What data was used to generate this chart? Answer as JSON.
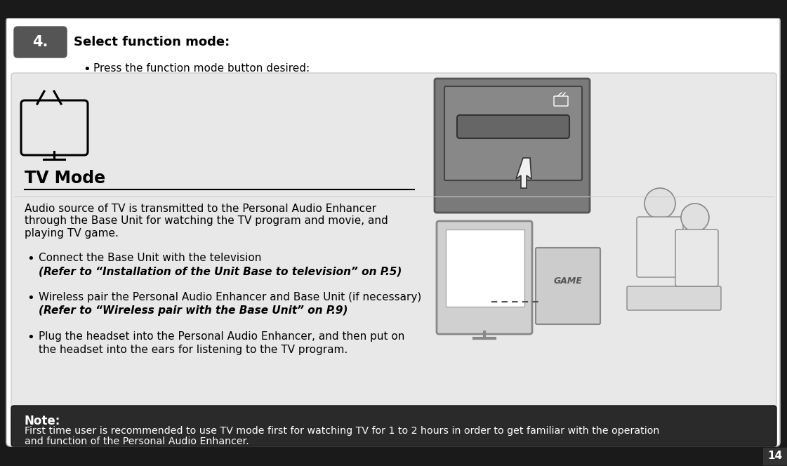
{
  "bg_outer": "#1a1a1a",
  "bg_page": "#f5f5f5",
  "bg_content_box": "#e8e8e8",
  "bg_note": "#2a2a2a",
  "step_bubble_color": "#555555",
  "step_bubble_text": "4.",
  "step_label": "Select function mode:",
  "bullet_line": "Press the function mode button desired:",
  "tv_mode_title": "TV Mode",
  "tv_mode_desc": "Audio source of TV is transmitted to the Personal Audio Enhancer\nthrough the Base Unit for watching the TV program and movie, and\nplaying TV game.",
  "bullet1_main": "Connect the Base Unit with the television",
  "bullet1_italic": "(Refer to “Installation of the Unit Base to television” on P.5)",
  "bullet2_main": "Wireless pair the Personal Audio Enhancer and Base Unit (if necessary)",
  "bullet2_italic": "(Refer to “Wireless pair with the Base Unit” on P.9)",
  "bullet3_line1": "Plug the headset into the Personal Audio Enhancer, and then put on",
  "bullet3_line2": "the headset into the ears for listening to the TV program.",
  "note_title": "Note:",
  "note_line1": "First time user is recommended to use TV mode first for watching TV for 1 to 2 hours in order to get familiar with the operation",
  "note_line2": "and function of the Personal Audio Enhancer.",
  "page_number": "14",
  "top_bar_color": "#1a1a1a",
  "bottom_bar_color": "#1a1a1a"
}
